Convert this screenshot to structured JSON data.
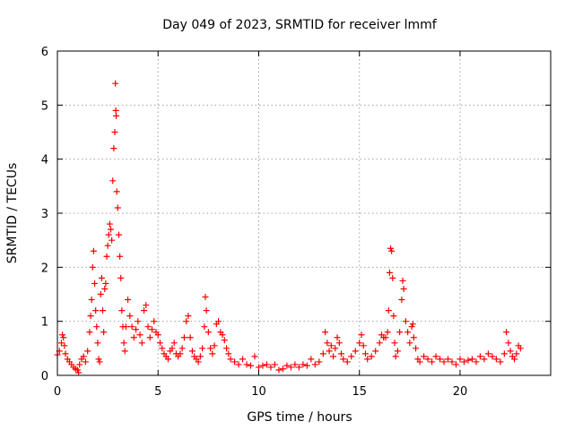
{
  "chart_data": {
    "type": "scatter",
    "title": "Day 049 of 2023, SRMTID for receiver lmmf",
    "xlabel": "GPS time / hours",
    "ylabel": "SRMTID / TECUs",
    "xlim": [
      0,
      24.5
    ],
    "ylim": [
      0,
      6
    ],
    "xticks": [
      0,
      5,
      10,
      15,
      20
    ],
    "yticks": [
      0,
      1,
      2,
      3,
      4,
      5,
      6
    ],
    "grid": true,
    "marker": "+",
    "color": "#ff0000",
    "series": [
      {
        "name": "SRMTID",
        "points": [
          [
            0.0,
            0.38
          ],
          [
            0.1,
            0.45
          ],
          [
            0.2,
            0.6
          ],
          [
            0.25,
            0.75
          ],
          [
            0.3,
            0.7
          ],
          [
            0.35,
            0.55
          ],
          [
            0.4,
            0.4
          ],
          [
            0.5,
            0.3
          ],
          [
            0.6,
            0.25
          ],
          [
            0.7,
            0.2
          ],
          [
            0.8,
            0.15
          ],
          [
            0.9,
            0.12
          ],
          [
            1.0,
            0.1
          ],
          [
            1.05,
            0.05
          ],
          [
            1.1,
            0.2
          ],
          [
            1.2,
            0.3
          ],
          [
            1.3,
            0.35
          ],
          [
            1.4,
            0.25
          ],
          [
            1.5,
            0.45
          ],
          [
            1.6,
            0.8
          ],
          [
            1.65,
            1.1
          ],
          [
            1.7,
            1.4
          ],
          [
            1.75,
            2.0
          ],
          [
            1.8,
            2.3
          ],
          [
            1.85,
            1.7
          ],
          [
            1.9,
            1.2
          ],
          [
            1.95,
            0.9
          ],
          [
            2.0,
            0.6
          ],
          [
            2.05,
            0.3
          ],
          [
            2.1,
            0.25
          ],
          [
            2.15,
            1.5
          ],
          [
            2.2,
            1.8
          ],
          [
            2.25,
            1.2
          ],
          [
            2.3,
            0.8
          ],
          [
            2.35,
            1.6
          ],
          [
            2.4,
            1.7
          ],
          [
            2.45,
            2.2
          ],
          [
            2.5,
            2.4
          ],
          [
            2.55,
            2.6
          ],
          [
            2.6,
            2.8
          ],
          [
            2.65,
            2.7
          ],
          [
            2.7,
            2.5
          ],
          [
            2.75,
            3.6
          ],
          [
            2.8,
            4.2
          ],
          [
            2.85,
            4.5
          ],
          [
            2.88,
            5.4
          ],
          [
            2.9,
            4.9
          ],
          [
            2.92,
            4.8
          ],
          [
            2.95,
            3.4
          ],
          [
            3.0,
            3.1
          ],
          [
            3.05,
            2.6
          ],
          [
            3.1,
            2.2
          ],
          [
            3.15,
            1.8
          ],
          [
            3.2,
            1.2
          ],
          [
            3.25,
            0.9
          ],
          [
            3.3,
            0.6
          ],
          [
            3.35,
            0.45
          ],
          [
            3.4,
            0.9
          ],
          [
            3.5,
            1.4
          ],
          [
            3.6,
            1.1
          ],
          [
            3.7,
            0.9
          ],
          [
            3.8,
            0.7
          ],
          [
            3.9,
            0.85
          ],
          [
            4.0,
            1.0
          ],
          [
            4.1,
            0.75
          ],
          [
            4.2,
            0.6
          ],
          [
            4.3,
            1.2
          ],
          [
            4.4,
            1.3
          ],
          [
            4.5,
            0.9
          ],
          [
            4.6,
            0.7
          ],
          [
            4.7,
            0.85
          ],
          [
            4.8,
            1.0
          ],
          [
            4.9,
            0.8
          ],
          [
            5.0,
            0.75
          ],
          [
            5.1,
            0.6
          ],
          [
            5.2,
            0.5
          ],
          [
            5.3,
            0.4
          ],
          [
            5.4,
            0.35
          ],
          [
            5.5,
            0.3
          ],
          [
            5.6,
            0.45
          ],
          [
            5.7,
            0.5
          ],
          [
            5.8,
            0.6
          ],
          [
            5.9,
            0.4
          ],
          [
            6.0,
            0.35
          ],
          [
            6.1,
            0.4
          ],
          [
            6.2,
            0.5
          ],
          [
            6.3,
            0.7
          ],
          [
            6.4,
            1.0
          ],
          [
            6.5,
            1.1
          ],
          [
            6.6,
            0.7
          ],
          [
            6.7,
            0.45
          ],
          [
            6.8,
            0.35
          ],
          [
            6.9,
            0.3
          ],
          [
            7.0,
            0.25
          ],
          [
            7.1,
            0.35
          ],
          [
            7.2,
            0.5
          ],
          [
            7.3,
            0.9
          ],
          [
            7.35,
            1.45
          ],
          [
            7.4,
            1.2
          ],
          [
            7.5,
            0.8
          ],
          [
            7.6,
            0.5
          ],
          [
            7.7,
            0.4
          ],
          [
            7.8,
            0.55
          ],
          [
            7.9,
            0.95
          ],
          [
            8.0,
            1.0
          ],
          [
            8.1,
            0.8
          ],
          [
            8.2,
            0.75
          ],
          [
            8.3,
            0.65
          ],
          [
            8.4,
            0.5
          ],
          [
            8.5,
            0.4
          ],
          [
            8.6,
            0.3
          ],
          [
            8.8,
            0.25
          ],
          [
            9.0,
            0.2
          ],
          [
            9.2,
            0.3
          ],
          [
            9.4,
            0.2
          ],
          [
            9.6,
            0.18
          ],
          [
            9.8,
            0.35
          ],
          [
            10.0,
            0.15
          ],
          [
            10.2,
            0.18
          ],
          [
            10.4,
            0.2
          ],
          [
            10.6,
            0.15
          ],
          [
            10.8,
            0.2
          ],
          [
            11.0,
            0.1
          ],
          [
            11.2,
            0.12
          ],
          [
            11.4,
            0.18
          ],
          [
            11.6,
            0.15
          ],
          [
            11.8,
            0.2
          ],
          [
            12.0,
            0.15
          ],
          [
            12.2,
            0.2
          ],
          [
            12.4,
            0.18
          ],
          [
            12.6,
            0.3
          ],
          [
            12.8,
            0.2
          ],
          [
            13.0,
            0.25
          ],
          [
            13.2,
            0.4
          ],
          [
            13.3,
            0.8
          ],
          [
            13.4,
            0.6
          ],
          [
            13.5,
            0.45
          ],
          [
            13.6,
            0.55
          ],
          [
            13.7,
            0.35
          ],
          [
            13.8,
            0.5
          ],
          [
            13.9,
            0.7
          ],
          [
            14.0,
            0.6
          ],
          [
            14.1,
            0.4
          ],
          [
            14.2,
            0.3
          ],
          [
            14.4,
            0.25
          ],
          [
            14.6,
            0.35
          ],
          [
            14.8,
            0.45
          ],
          [
            15.0,
            0.6
          ],
          [
            15.1,
            0.75
          ],
          [
            15.2,
            0.55
          ],
          [
            15.3,
            0.4
          ],
          [
            15.4,
            0.3
          ],
          [
            15.6,
            0.35
          ],
          [
            15.8,
            0.45
          ],
          [
            16.0,
            0.6
          ],
          [
            16.1,
            0.75
          ],
          [
            16.2,
            0.7
          ],
          [
            16.3,
            0.7
          ],
          [
            16.4,
            0.8
          ],
          [
            16.45,
            1.2
          ],
          [
            16.5,
            1.9
          ],
          [
            16.55,
            2.35
          ],
          [
            16.6,
            2.3
          ],
          [
            16.65,
            1.8
          ],
          [
            16.7,
            1.1
          ],
          [
            16.75,
            0.6
          ],
          [
            16.8,
            0.35
          ],
          [
            16.9,
            0.45
          ],
          [
            17.0,
            0.8
          ],
          [
            17.1,
            1.4
          ],
          [
            17.15,
            1.75
          ],
          [
            17.2,
            1.6
          ],
          [
            17.3,
            1.0
          ],
          [
            17.4,
            0.8
          ],
          [
            17.5,
            0.6
          ],
          [
            17.6,
            0.9
          ],
          [
            17.65,
            0.95
          ],
          [
            17.7,
            0.7
          ],
          [
            17.8,
            0.5
          ],
          [
            17.9,
            0.3
          ],
          [
            18.0,
            0.25
          ],
          [
            18.2,
            0.35
          ],
          [
            18.4,
            0.3
          ],
          [
            18.6,
            0.25
          ],
          [
            18.8,
            0.35
          ],
          [
            19.0,
            0.3
          ],
          [
            19.2,
            0.25
          ],
          [
            19.4,
            0.3
          ],
          [
            19.6,
            0.25
          ],
          [
            19.8,
            0.2
          ],
          [
            20.0,
            0.3
          ],
          [
            20.2,
            0.25
          ],
          [
            20.4,
            0.28
          ],
          [
            20.6,
            0.3
          ],
          [
            20.8,
            0.25
          ],
          [
            21.0,
            0.35
          ],
          [
            21.2,
            0.3
          ],
          [
            21.4,
            0.4
          ],
          [
            21.6,
            0.35
          ],
          [
            21.8,
            0.3
          ],
          [
            22.0,
            0.25
          ],
          [
            22.2,
            0.4
          ],
          [
            22.3,
            0.8
          ],
          [
            22.4,
            0.6
          ],
          [
            22.5,
            0.45
          ],
          [
            22.6,
            0.35
          ],
          [
            22.7,
            0.3
          ],
          [
            22.8,
            0.4
          ],
          [
            22.9,
            0.55
          ],
          [
            23.0,
            0.5
          ]
        ]
      }
    ]
  }
}
